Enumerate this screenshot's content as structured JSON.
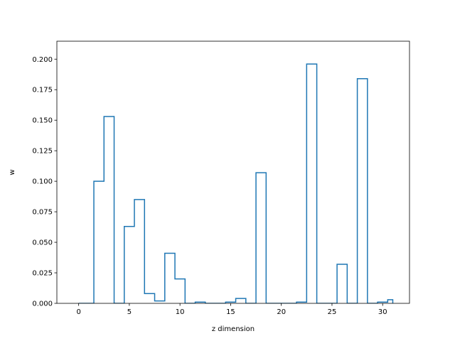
{
  "chart_data": {
    "type": "line",
    "style": "step-outline",
    "x": [
      0,
      1,
      2,
      3,
      4,
      5,
      6,
      7,
      8,
      9,
      10,
      11,
      12,
      13,
      14,
      15,
      16,
      17,
      18,
      19,
      20,
      21,
      22,
      23,
      24,
      25,
      26,
      27,
      28,
      29,
      30,
      31
    ],
    "series": [
      {
        "values": [
          0.0,
          0.0,
          0.1,
          0.153,
          0.0,
          0.063,
          0.085,
          0.008,
          0.002,
          0.041,
          0.02,
          0.0,
          0.001,
          0.0,
          0.0,
          0.001,
          0.004,
          0.0,
          0.107,
          0.0,
          0.0,
          0.0,
          0.001,
          0.196,
          0.0,
          0.0,
          0.032,
          0.0,
          0.184,
          0.0,
          0.001,
          0.003
        ],
        "color": "#1f77b4"
      }
    ],
    "xlabel": "z dimension",
    "ylabel": "w",
    "xlim": [
      -2.15,
      32.65
    ],
    "ylim": [
      0,
      0.2147
    ],
    "xticks": [
      0,
      5,
      10,
      15,
      20,
      25,
      30
    ],
    "yticks": [
      0.0,
      0.025,
      0.05,
      0.075,
      0.1,
      0.125,
      0.15,
      0.175,
      0.2
    ],
    "ytick_labels": [
      "0.000",
      "0.025",
      "0.050",
      "0.075",
      "0.100",
      "0.125",
      "0.150",
      "0.175",
      "0.200"
    ],
    "grid": false,
    "legend": "none"
  }
}
